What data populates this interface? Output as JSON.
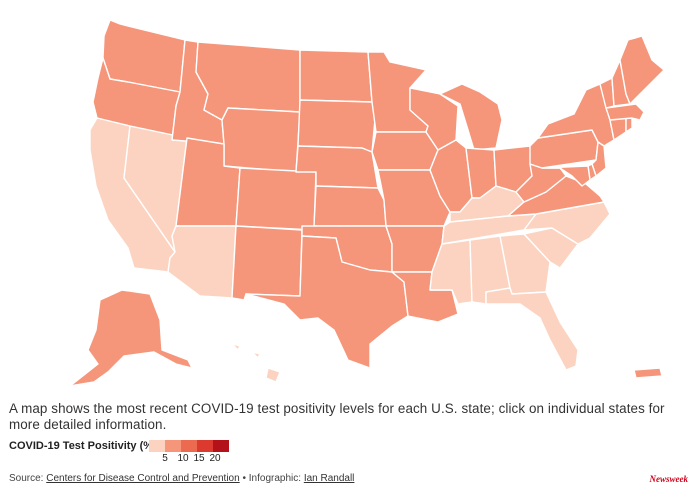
{
  "caption": "A map shows the most recent COVID-19 test positivity levels for each U.S. state; click on individual states for more detailed information.",
  "legend": {
    "title": "COVID-19 Test Positivity (%):",
    "ticks": [
      "5",
      "10",
      "15",
      "20"
    ],
    "colors": [
      "#fbd3c0",
      "#f5957a",
      "#ec6a4f",
      "#dc3a2e",
      "#b3121b"
    ]
  },
  "footer": {
    "source_prefix": "Source:",
    "source_link": "Centers for Disease Control and Prevention",
    "separator": "•",
    "infographic_prefix": "Infographic:",
    "author_link": "Ian Randall"
  },
  "brand": "Newsweek",
  "map_data": {
    "region_colors": {
      "low": "#fbd3c0",
      "mid": "#f5957a"
    },
    "states": [
      {
        "code": "WA",
        "level": "mid"
      },
      {
        "code": "OR",
        "level": "mid"
      },
      {
        "code": "CA",
        "level": "low"
      },
      {
        "code": "NV",
        "level": "low"
      },
      {
        "code": "ID",
        "level": "mid"
      },
      {
        "code": "MT",
        "level": "mid"
      },
      {
        "code": "WY",
        "level": "mid"
      },
      {
        "code": "UT",
        "level": "mid"
      },
      {
        "code": "AZ",
        "level": "low"
      },
      {
        "code": "CO",
        "level": "mid"
      },
      {
        "code": "NM",
        "level": "mid"
      },
      {
        "code": "ND",
        "level": "mid"
      },
      {
        "code": "SD",
        "level": "mid"
      },
      {
        "code": "NE",
        "level": "mid"
      },
      {
        "code": "KS",
        "level": "mid"
      },
      {
        "code": "OK",
        "level": "mid"
      },
      {
        "code": "TX",
        "level": "mid"
      },
      {
        "code": "MN",
        "level": "mid"
      },
      {
        "code": "IA",
        "level": "mid"
      },
      {
        "code": "MO",
        "level": "mid"
      },
      {
        "code": "AR",
        "level": "mid"
      },
      {
        "code": "LA",
        "level": "mid"
      },
      {
        "code": "WI",
        "level": "mid"
      },
      {
        "code": "IL",
        "level": "mid"
      },
      {
        "code": "MI",
        "level": "mid"
      },
      {
        "code": "IN",
        "level": "mid"
      },
      {
        "code": "OH",
        "level": "mid"
      },
      {
        "code": "KY",
        "level": "low"
      },
      {
        "code": "TN",
        "level": "low"
      },
      {
        "code": "MS",
        "level": "low"
      },
      {
        "code": "AL",
        "level": "low"
      },
      {
        "code": "GA",
        "level": "low"
      },
      {
        "code": "FL",
        "level": "low"
      },
      {
        "code": "SC",
        "level": "low"
      },
      {
        "code": "NC",
        "level": "low"
      },
      {
        "code": "VA",
        "level": "mid"
      },
      {
        "code": "WV",
        "level": "mid"
      },
      {
        "code": "PA",
        "level": "mid"
      },
      {
        "code": "NY",
        "level": "mid"
      },
      {
        "code": "NJ",
        "level": "mid"
      },
      {
        "code": "DE",
        "level": "mid"
      },
      {
        "code": "MD",
        "level": "mid"
      },
      {
        "code": "CT",
        "level": "mid"
      },
      {
        "code": "RI",
        "level": "mid"
      },
      {
        "code": "MA",
        "level": "mid"
      },
      {
        "code": "VT",
        "level": "mid"
      },
      {
        "code": "NH",
        "level": "mid"
      },
      {
        "code": "ME",
        "level": "mid"
      },
      {
        "code": "AK",
        "level": "mid"
      },
      {
        "code": "HI",
        "level": "low"
      },
      {
        "code": "PR",
        "level": "mid"
      }
    ]
  }
}
